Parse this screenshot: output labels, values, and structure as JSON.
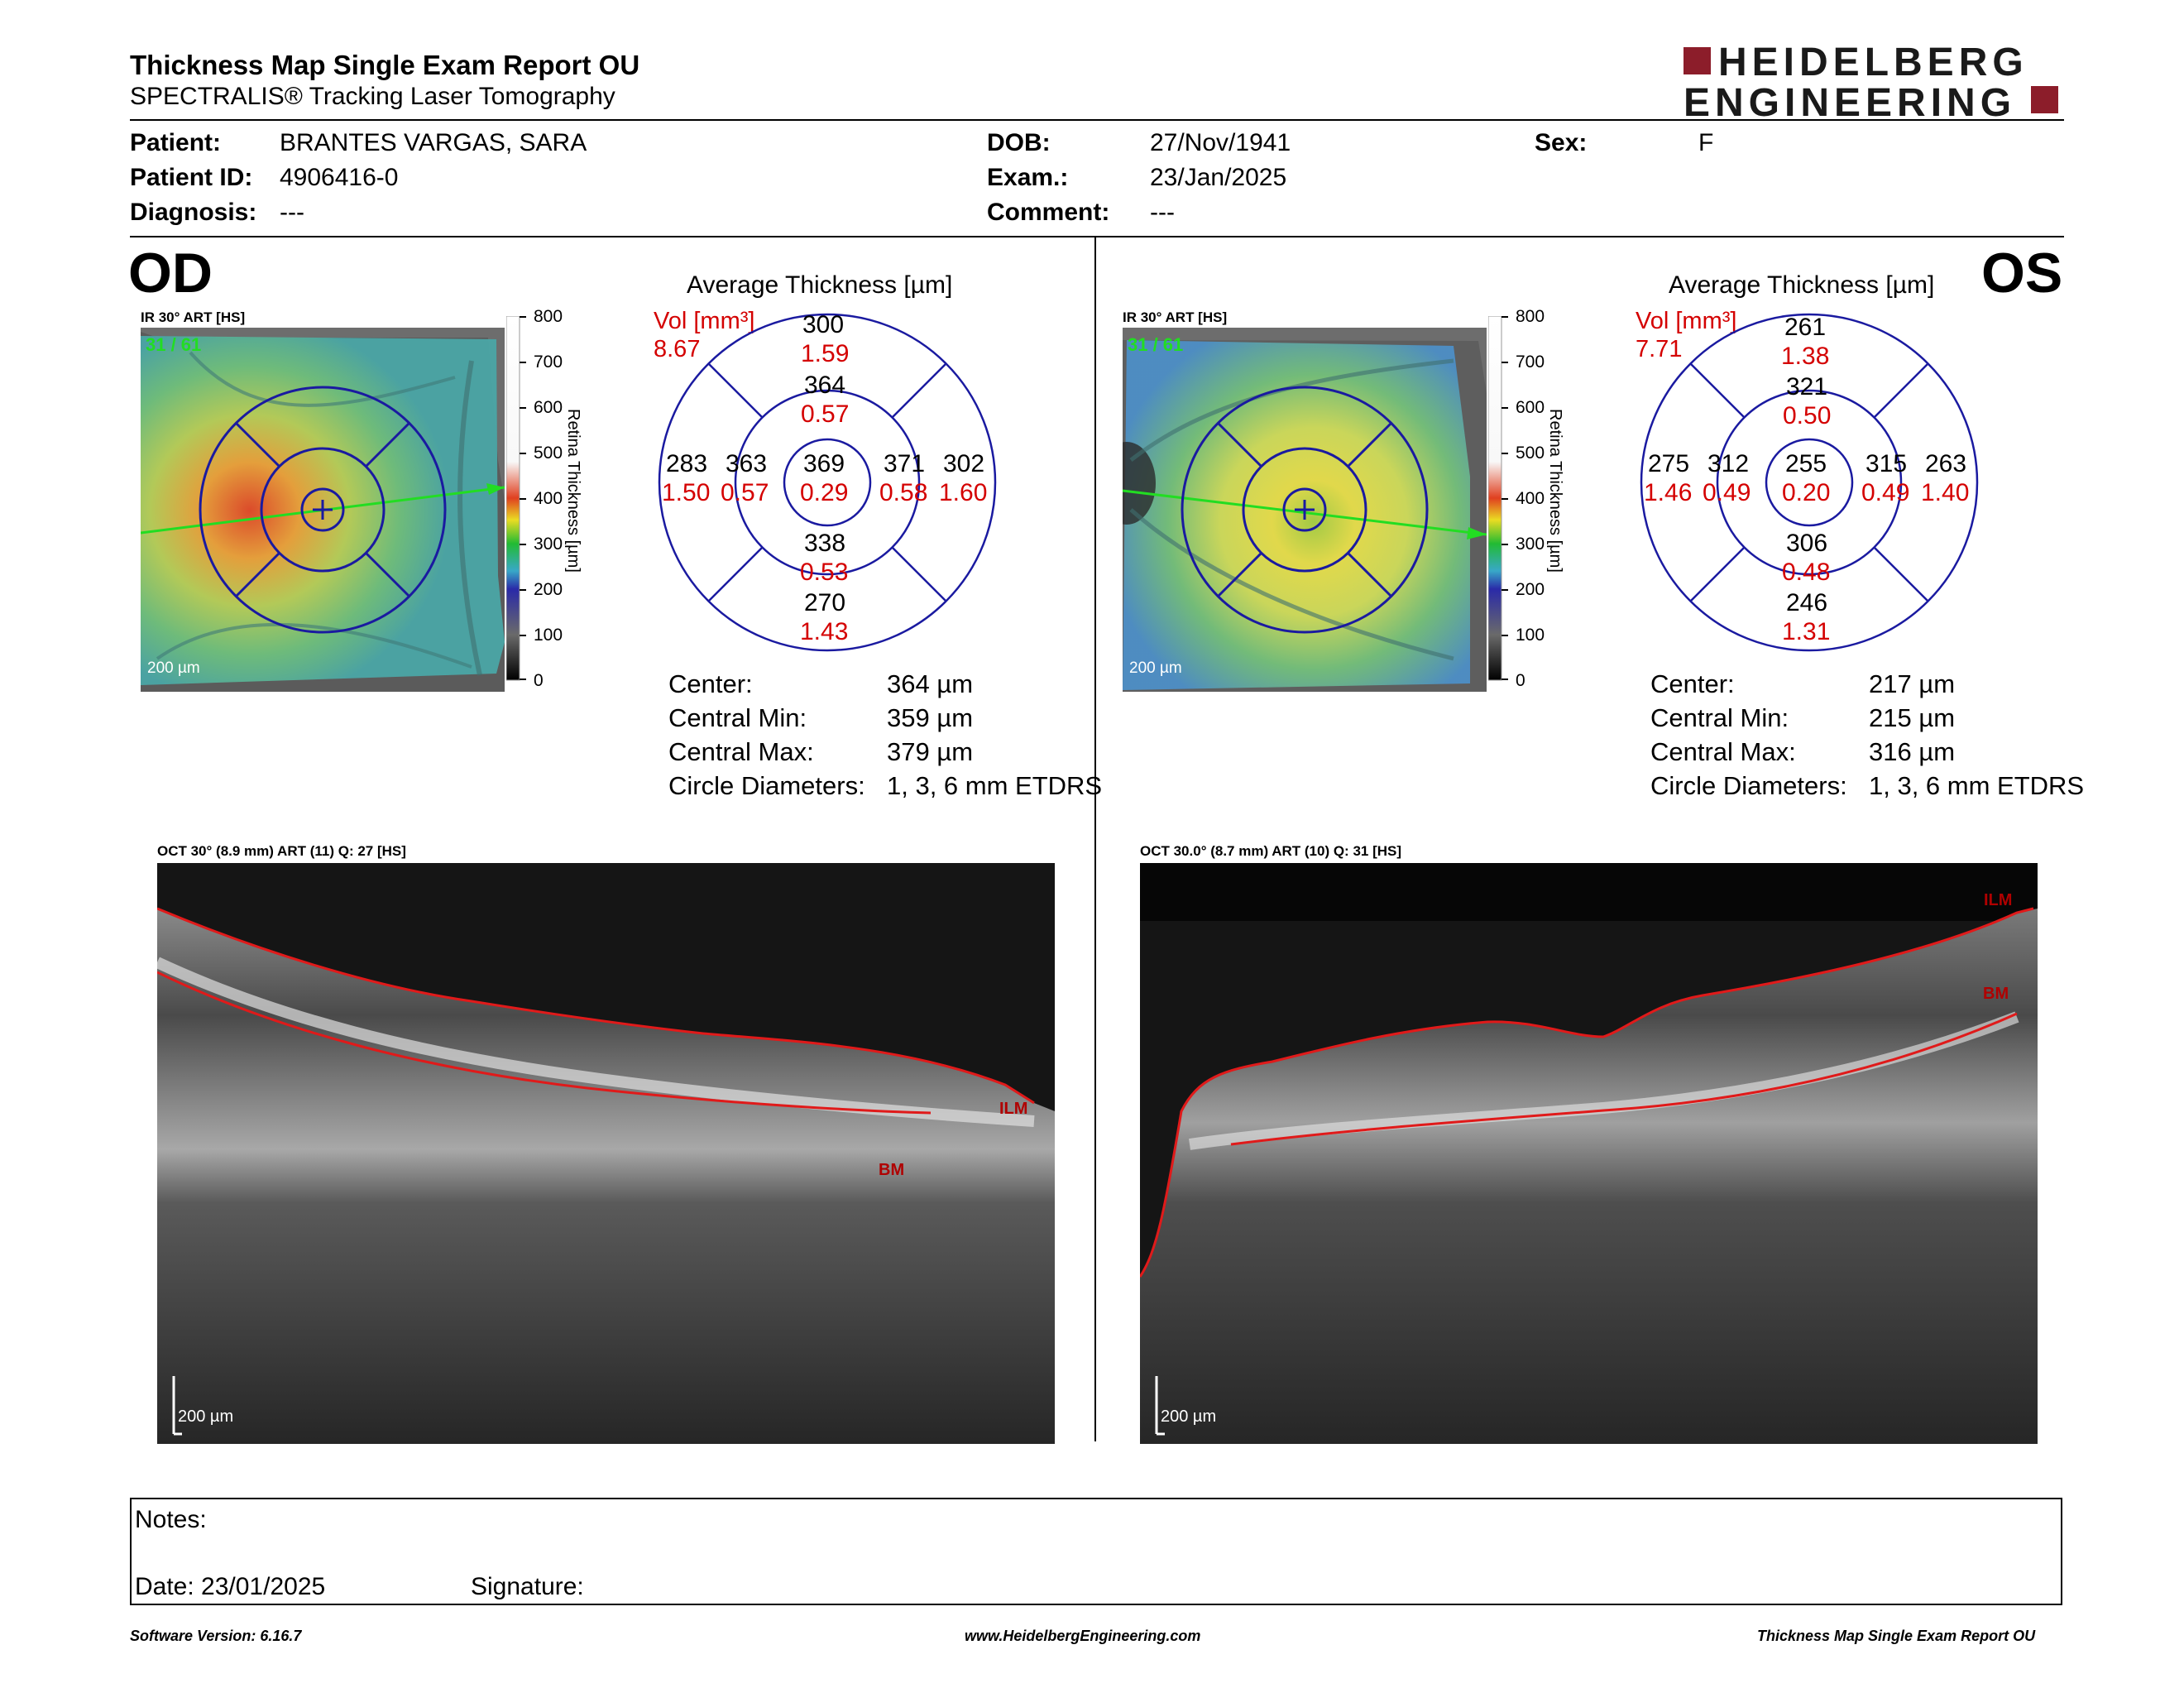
{
  "header": {
    "title": "Thickness Map Single Exam Report OU",
    "subtitle": "SPECTRALIS® Tracking Laser Tomography",
    "logo_line1": "HEIDELBERG",
    "logo_line2": "ENGINEERING"
  },
  "patient": {
    "patient_label": "Patient:",
    "patient_value": "BRANTES VARGAS, SARA",
    "id_label": "Patient ID:",
    "id_value": "4906416-0",
    "diagnosis_label": "Diagnosis:",
    "diagnosis_value": "---",
    "dob_label": "DOB:",
    "dob_value": "27/Nov/1941",
    "exam_label": "Exam.:",
    "exam_value": "23/Jan/2025",
    "comment_label": "Comment:",
    "comment_value": "---",
    "sex_label": "Sex:",
    "sex_value": "F"
  },
  "scale_ticks": [
    "800",
    "700",
    "600",
    "500",
    "400",
    "300",
    "200",
    "100",
    "0"
  ],
  "scale_title": "Retina Thickness [µm]",
  "od": {
    "eye": "OD",
    "ir_label": "IR 30° ART [HS]",
    "frames": "31 / 61",
    "scalebar": "200 µm",
    "avg_title": "Average Thickness [µm]",
    "vol_label": "Vol [mm³]",
    "vol_total": "8.67",
    "grid": {
      "outer_sup": "300",
      "outer_sup_vol": "1.59",
      "inner_sup": "364",
      "inner_sup_vol": "0.57",
      "outer_temp": "283",
      "outer_temp_vol": "1.50",
      "inner_temp": "363",
      "inner_temp_vol": "0.57",
      "center": "369",
      "center_vol": "0.29",
      "inner_nas": "371",
      "inner_nas_vol": "0.58",
      "outer_nas": "302",
      "outer_nas_vol": "1.60",
      "inner_inf": "338",
      "inner_inf_vol": "0.53",
      "outer_inf": "270",
      "outer_inf_vol": "1.43"
    },
    "stats": [
      {
        "label": "Center:",
        "value": "364 µm"
      },
      {
        "label": "Central Min:",
        "value": "359 µm"
      },
      {
        "label": "Central Max:",
        "value": "379 µm"
      },
      {
        "label": "Circle Diameters:",
        "value": "1, 3, 6 mm ETDRS"
      }
    ],
    "oct_label": "OCT 30° (8.9 mm) ART (11) Q: 27 [HS]",
    "ilm": "ILM",
    "bm": "BM",
    "oct_scalebar": "200 µm"
  },
  "os": {
    "eye": "OS",
    "ir_label": "IR 30° ART [HS]",
    "frames": "31 / 61",
    "scalebar": "200 µm",
    "avg_title": "Average Thickness [µm]",
    "vol_label": "Vol [mm³]",
    "vol_total": "7.71",
    "grid": {
      "outer_sup": "261",
      "outer_sup_vol": "1.38",
      "inner_sup": "321",
      "inner_sup_vol": "0.50",
      "outer_temp": "275",
      "outer_temp_vol": "1.46",
      "inner_temp": "312",
      "inner_temp_vol": "0.49",
      "center": "255",
      "center_vol": "0.20",
      "inner_nas": "315",
      "inner_nas_vol": "0.49",
      "outer_nas": "263",
      "outer_nas_vol": "1.40",
      "inner_inf": "306",
      "inner_inf_vol": "0.48",
      "outer_inf": "246",
      "outer_inf_vol": "1.31"
    },
    "stats": [
      {
        "label": "Center:",
        "value": "217 µm"
      },
      {
        "label": "Central Min:",
        "value": "215 µm"
      },
      {
        "label": "Central Max:",
        "value": "316 µm"
      },
      {
        "label": "Circle Diameters:",
        "value": "1, 3, 6 mm ETDRS"
      }
    ],
    "oct_label": "OCT 30.0° (8.7 mm) ART (10) Q: 31 [HS]",
    "ilm": "ILM",
    "bm": "BM",
    "oct_scalebar": "200 µm"
  },
  "notes": {
    "notes_label": "Notes:",
    "date_label": "Date: 23/01/2025",
    "signature_label": "Signature:"
  },
  "footer": {
    "software": "Software Version: 6.16.7",
    "website": "www.HeidelbergEngineering.com",
    "report": "Thickness Map Single Exam Report OU"
  }
}
